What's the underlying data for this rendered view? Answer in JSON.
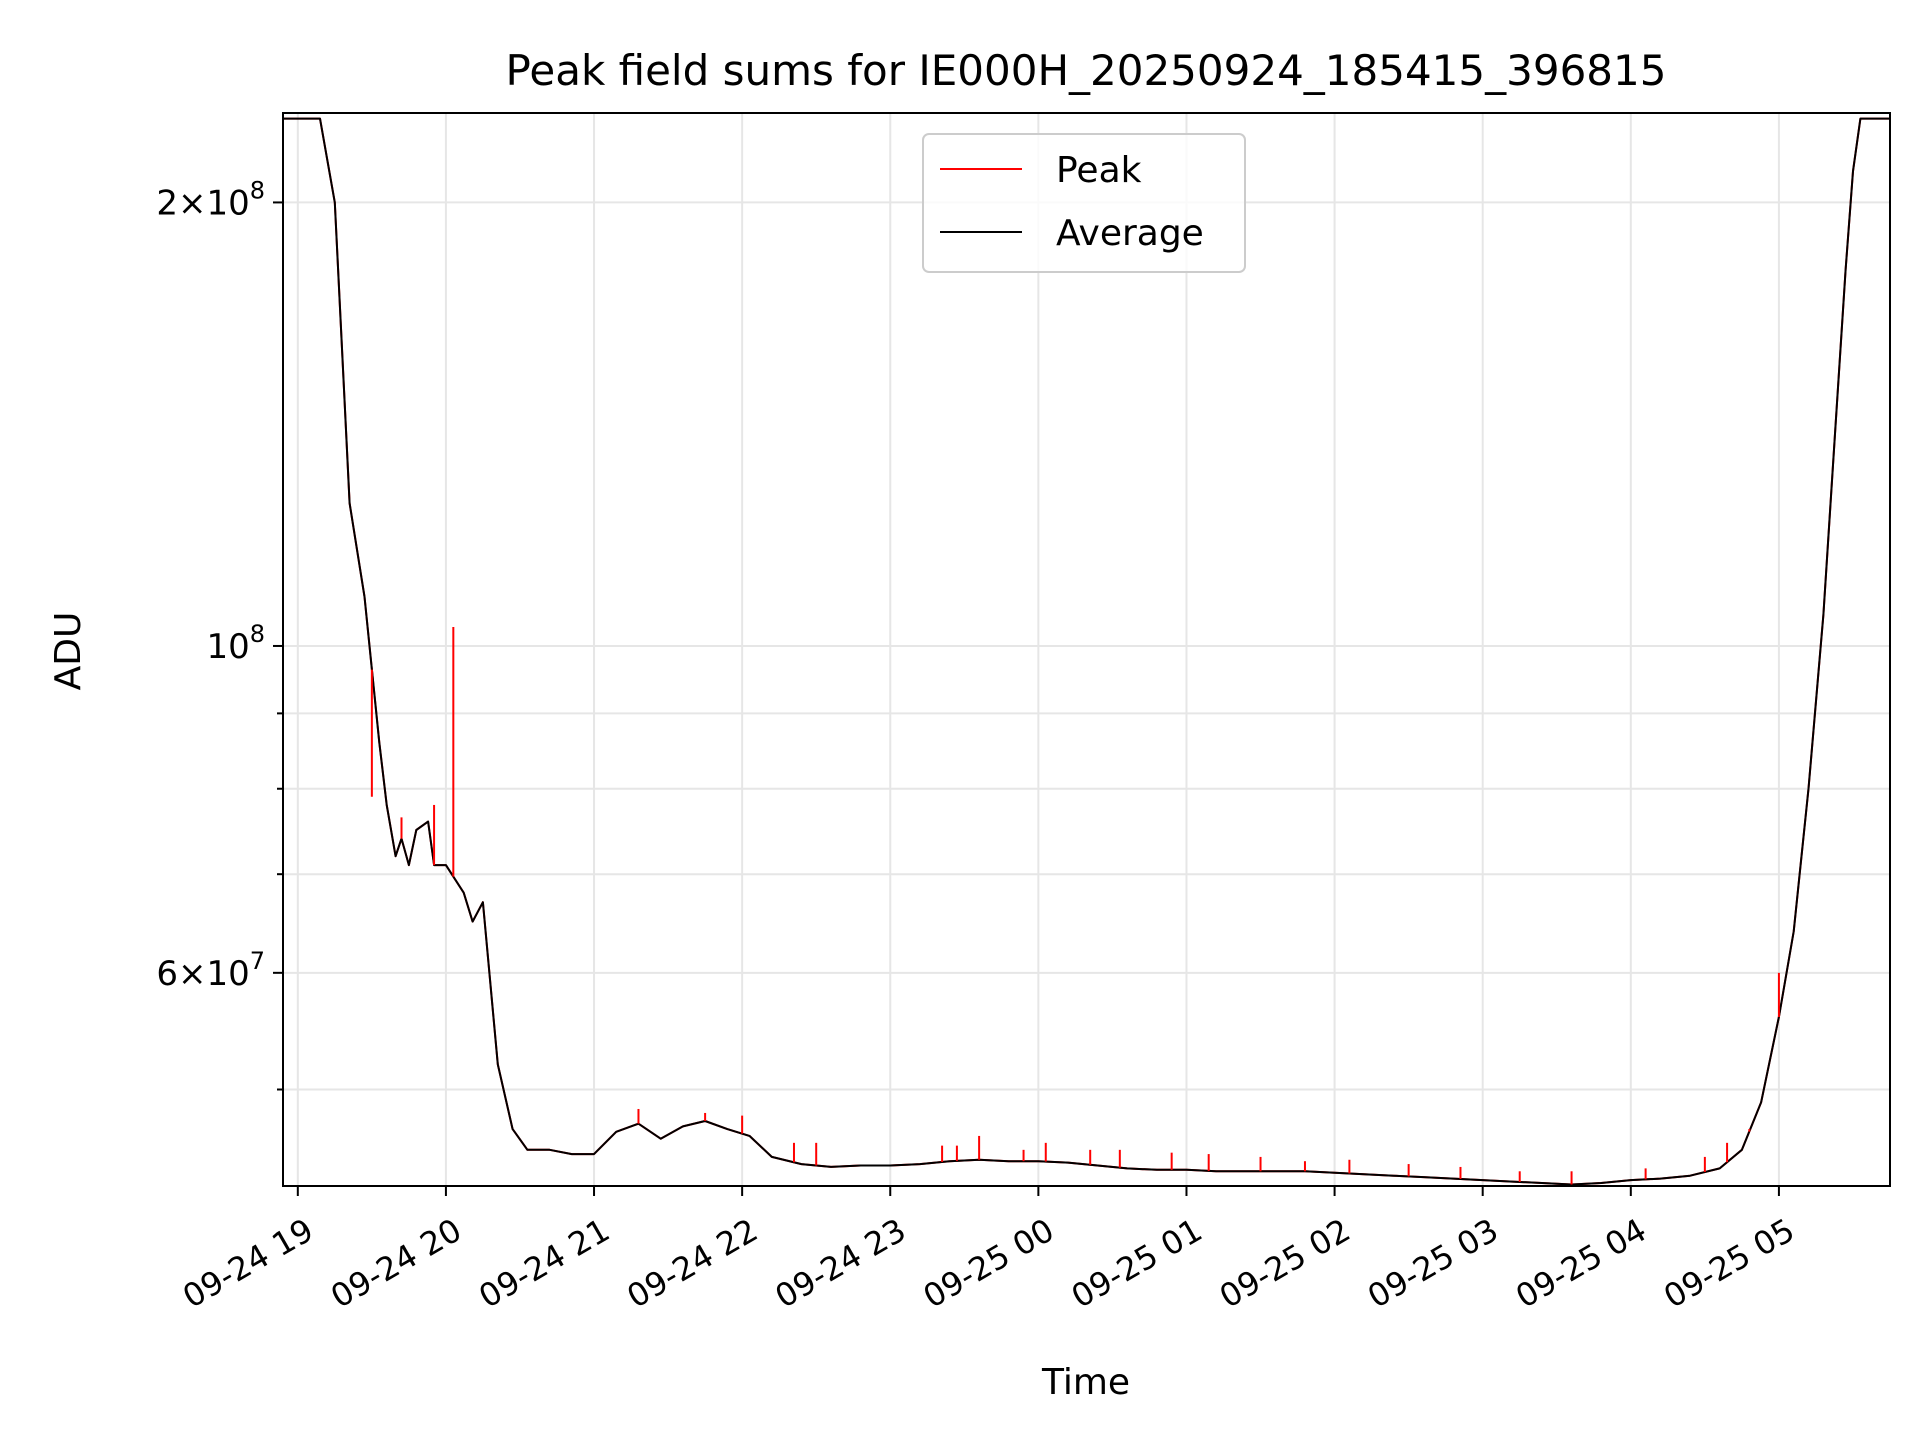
{
  "chart_data": {
    "type": "line",
    "title": "Peak field sums for IE000H_20250924_185415_396815",
    "xlabel": "Time",
    "ylabel": "ADU",
    "yscale": "log",
    "grid": true,
    "legend_position": "top-center",
    "x_tick_labels": [
      "09-24 19",
      "09-24 20",
      "09-24 21",
      "09-24 22",
      "09-24 23",
      "09-25 00",
      "09-25 01",
      "09-25 02",
      "09-25 03",
      "09-25 04",
      "09-25 05"
    ],
    "x_tick_hours": [
      0,
      1,
      2,
      3,
      4,
      5,
      6,
      7,
      8,
      9,
      10
    ],
    "x_range_hours": [
      -0.1,
      10.75
    ],
    "x_hour0_label": "09-24 19:00",
    "y_major_ticks": [
      {
        "value": 200000000,
        "mantissa": "2",
        "exponent": "8"
      },
      {
        "value": 100000000,
        "mantissa": "",
        "exponent": "8"
      },
      {
        "value": 60000000,
        "mantissa": "6",
        "exponent": "7"
      }
    ],
    "y_minor_ticks": [
      50000000,
      70000000,
      80000000,
      90000000
    ],
    "ylim": [
      43000000,
      230000000
    ],
    "series": [
      {
        "name": "Peak",
        "color": "#ff0000",
        "points": [
          [
            -0.1,
            228000000
          ],
          [
            0.15,
            228000000
          ],
          [
            0.25,
            200000000
          ],
          [
            0.35,
            125000000
          ],
          [
            0.45,
            108000000
          ],
          [
            0.55,
            86000000
          ],
          [
            0.6,
            78000000
          ],
          [
            0.66,
            72000000
          ],
          [
            0.7,
            74000000
          ],
          [
            0.75,
            71000000
          ],
          [
            0.8,
            75000000
          ],
          [
            0.88,
            76000000
          ],
          [
            0.92,
            71000000
          ],
          [
            1.0,
            71000000
          ],
          [
            1.12,
            68000000
          ],
          [
            1.18,
            65000000
          ],
          [
            1.25,
            67000000
          ],
          [
            1.35,
            52000000
          ],
          [
            1.45,
            47000000
          ],
          [
            1.55,
            45500000
          ],
          [
            1.7,
            45500000
          ],
          [
            1.85,
            45200000
          ],
          [
            2.0,
            45200000
          ],
          [
            2.15,
            46800000
          ],
          [
            2.3,
            47400000
          ],
          [
            2.45,
            46300000
          ],
          [
            2.6,
            47200000
          ],
          [
            2.75,
            47600000
          ],
          [
            2.9,
            47000000
          ],
          [
            3.05,
            46500000
          ],
          [
            3.2,
            45000000
          ],
          [
            3.4,
            44500000
          ],
          [
            3.6,
            44300000
          ],
          [
            3.8,
            44400000
          ],
          [
            4.0,
            44400000
          ],
          [
            4.2,
            44500000
          ],
          [
            4.4,
            44700000
          ],
          [
            4.6,
            44800000
          ],
          [
            4.8,
            44700000
          ],
          [
            5.0,
            44700000
          ],
          [
            5.2,
            44600000
          ],
          [
            5.4,
            44400000
          ],
          [
            5.6,
            44200000
          ],
          [
            5.8,
            44100000
          ],
          [
            6.0,
            44100000
          ],
          [
            6.2,
            44000000
          ],
          [
            6.4,
            44000000
          ],
          [
            6.6,
            44000000
          ],
          [
            6.8,
            44000000
          ],
          [
            7.0,
            43900000
          ],
          [
            7.2,
            43800000
          ],
          [
            7.4,
            43700000
          ],
          [
            7.6,
            43600000
          ],
          [
            7.8,
            43500000
          ],
          [
            8.0,
            43400000
          ],
          [
            8.2,
            43300000
          ],
          [
            8.4,
            43200000
          ],
          [
            8.6,
            43100000
          ],
          [
            8.8,
            43200000
          ],
          [
            9.0,
            43400000
          ],
          [
            9.2,
            43500000
          ],
          [
            9.4,
            43700000
          ],
          [
            9.6,
            44200000
          ],
          [
            9.75,
            45500000
          ],
          [
            9.88,
            49000000
          ],
          [
            10.0,
            56000000
          ],
          [
            10.1,
            64000000
          ],
          [
            10.2,
            80000000
          ],
          [
            10.3,
            105000000
          ],
          [
            10.38,
            140000000
          ],
          [
            10.45,
            180000000
          ],
          [
            10.5,
            210000000
          ],
          [
            10.55,
            228000000
          ],
          [
            10.75,
            228000000
          ]
        ]
      },
      {
        "name": "Average",
        "color": "#000000",
        "points": [
          [
            -0.1,
            228000000
          ],
          [
            0.15,
            228000000
          ],
          [
            0.25,
            200000000
          ],
          [
            0.35,
            125000000
          ],
          [
            0.45,
            108000000
          ],
          [
            0.55,
            86000000
          ],
          [
            0.6,
            78000000
          ],
          [
            0.66,
            72000000
          ],
          [
            0.7,
            74000000
          ],
          [
            0.75,
            71000000
          ],
          [
            0.8,
            75000000
          ],
          [
            0.88,
            76000000
          ],
          [
            0.92,
            71000000
          ],
          [
            1.0,
            71000000
          ],
          [
            1.12,
            68000000
          ],
          [
            1.18,
            65000000
          ],
          [
            1.25,
            67000000
          ],
          [
            1.35,
            52000000
          ],
          [
            1.45,
            47000000
          ],
          [
            1.55,
            45500000
          ],
          [
            1.7,
            45500000
          ],
          [
            1.85,
            45200000
          ],
          [
            2.0,
            45200000
          ],
          [
            2.15,
            46800000
          ],
          [
            2.3,
            47400000
          ],
          [
            2.45,
            46300000
          ],
          [
            2.6,
            47200000
          ],
          [
            2.75,
            47600000
          ],
          [
            2.9,
            47000000
          ],
          [
            3.05,
            46500000
          ],
          [
            3.2,
            45000000
          ],
          [
            3.4,
            44500000
          ],
          [
            3.6,
            44300000
          ],
          [
            3.8,
            44400000
          ],
          [
            4.0,
            44400000
          ],
          [
            4.2,
            44500000
          ],
          [
            4.4,
            44700000
          ],
          [
            4.6,
            44800000
          ],
          [
            4.8,
            44700000
          ],
          [
            5.0,
            44700000
          ],
          [
            5.2,
            44600000
          ],
          [
            5.4,
            44400000
          ],
          [
            5.6,
            44200000
          ],
          [
            5.8,
            44100000
          ],
          [
            6.0,
            44100000
          ],
          [
            6.2,
            44000000
          ],
          [
            6.4,
            44000000
          ],
          [
            6.6,
            44000000
          ],
          [
            6.8,
            44000000
          ],
          [
            7.0,
            43900000
          ],
          [
            7.2,
            43800000
          ],
          [
            7.4,
            43700000
          ],
          [
            7.6,
            43600000
          ],
          [
            7.8,
            43500000
          ],
          [
            8.0,
            43400000
          ],
          [
            8.2,
            43300000
          ],
          [
            8.4,
            43200000
          ],
          [
            8.6,
            43100000
          ],
          [
            8.8,
            43200000
          ],
          [
            9.0,
            43400000
          ],
          [
            9.2,
            43500000
          ],
          [
            9.4,
            43700000
          ],
          [
            9.6,
            44200000
          ],
          [
            9.75,
            45500000
          ],
          [
            9.88,
            49000000
          ],
          [
            10.0,
            56000000
          ],
          [
            10.1,
            64000000
          ],
          [
            10.2,
            80000000
          ],
          [
            10.3,
            105000000
          ],
          [
            10.38,
            140000000
          ],
          [
            10.45,
            180000000
          ],
          [
            10.5,
            210000000
          ],
          [
            10.55,
            228000000
          ],
          [
            10.75,
            228000000
          ]
        ]
      }
    ],
    "peak_spikes": [
      [
        1.05,
        103000000
      ],
      [
        0.92,
        78000000
      ],
      [
        0.7,
        76500000
      ],
      [
        0.5,
        79000000
      ],
      [
        2.3,
        48500000
      ],
      [
        2.75,
        48200000
      ],
      [
        3.0,
        48000000
      ],
      [
        3.35,
        46000000
      ],
      [
        3.5,
        46000000
      ],
      [
        4.35,
        45800000
      ],
      [
        4.45,
        45800000
      ],
      [
        4.6,
        46500000
      ],
      [
        4.9,
        45500000
      ],
      [
        5.05,
        46000000
      ],
      [
        5.35,
        45500000
      ],
      [
        5.55,
        45500000
      ],
      [
        5.9,
        45300000
      ],
      [
        6.15,
        45200000
      ],
      [
        6.5,
        45000000
      ],
      [
        6.8,
        44700000
      ],
      [
        7.1,
        44800000
      ],
      [
        7.5,
        44500000
      ],
      [
        7.85,
        44300000
      ],
      [
        8.25,
        44000000
      ],
      [
        8.6,
        44000000
      ],
      [
        9.1,
        44200000
      ],
      [
        9.5,
        45000000
      ],
      [
        9.65,
        46000000
      ],
      [
        9.8,
        47000000
      ],
      [
        10.0,
        60000000
      ]
    ]
  }
}
